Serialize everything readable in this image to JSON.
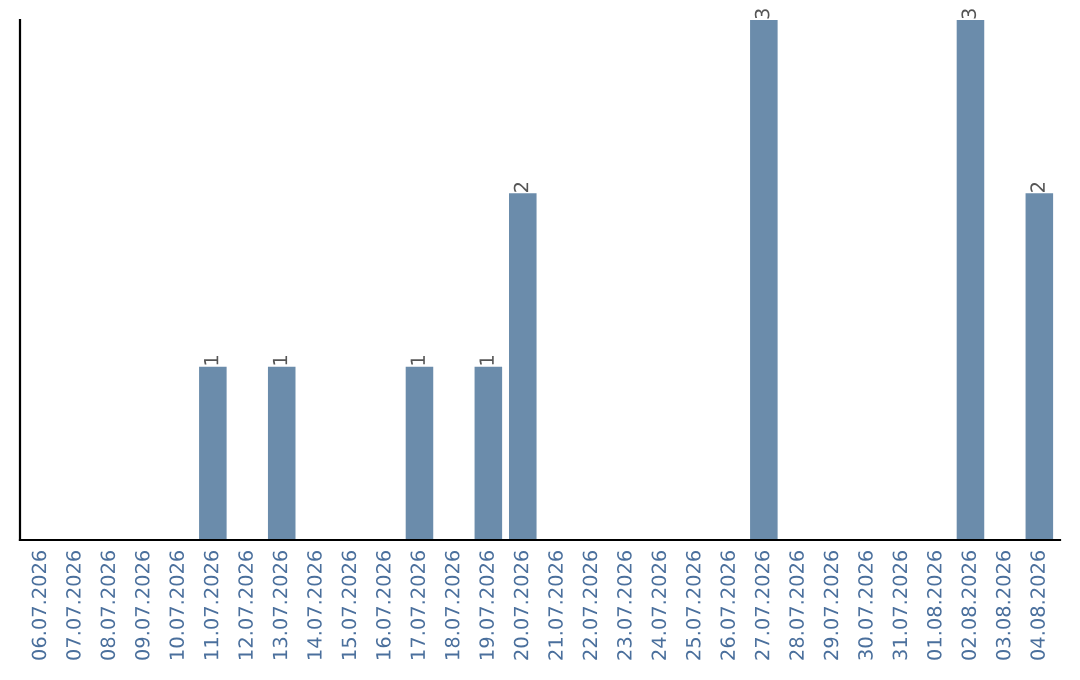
{
  "chart_data": {
    "type": "bar",
    "categories": [
      "06.07.2026",
      "07.07.2026",
      "08.07.2026",
      "09.07.2026",
      "10.07.2026",
      "11.07.2026",
      "12.07.2026",
      "13.07.2026",
      "14.07.2026",
      "15.07.2026",
      "16.07.2026",
      "17.07.2026",
      "18.07.2026",
      "19.07.2026",
      "20.07.2026",
      "21.07.2026",
      "22.07.2026",
      "23.07.2026",
      "24.07.2026",
      "25.07.2026",
      "26.07.2026",
      "27.07.2026",
      "28.07.2026",
      "29.07.2026",
      "30.07.2026",
      "31.07.2026",
      "01.08.2026",
      "02.08.2026",
      "03.08.2026",
      "04.08.2026"
    ],
    "values": [
      0,
      0,
      0,
      0,
      0,
      1,
      0,
      1,
      0,
      0,
      0,
      1,
      0,
      1,
      2,
      0,
      0,
      0,
      0,
      0,
      0,
      3,
      0,
      0,
      0,
      0,
      0,
      3,
      0,
      2
    ],
    "value_labels": [
      null,
      null,
      null,
      null,
      null,
      "1",
      null,
      "1",
      null,
      null,
      null,
      "1",
      null,
      "1",
      "2",
      null,
      null,
      null,
      null,
      null,
      null,
      "3",
      null,
      null,
      null,
      null,
      null,
      "3",
      null,
      "2"
    ],
    "color": "#6b8cab",
    "ylim": [
      0,
      3
    ],
    "tick_labels": "x",
    "grid": false,
    "legend": false
  }
}
